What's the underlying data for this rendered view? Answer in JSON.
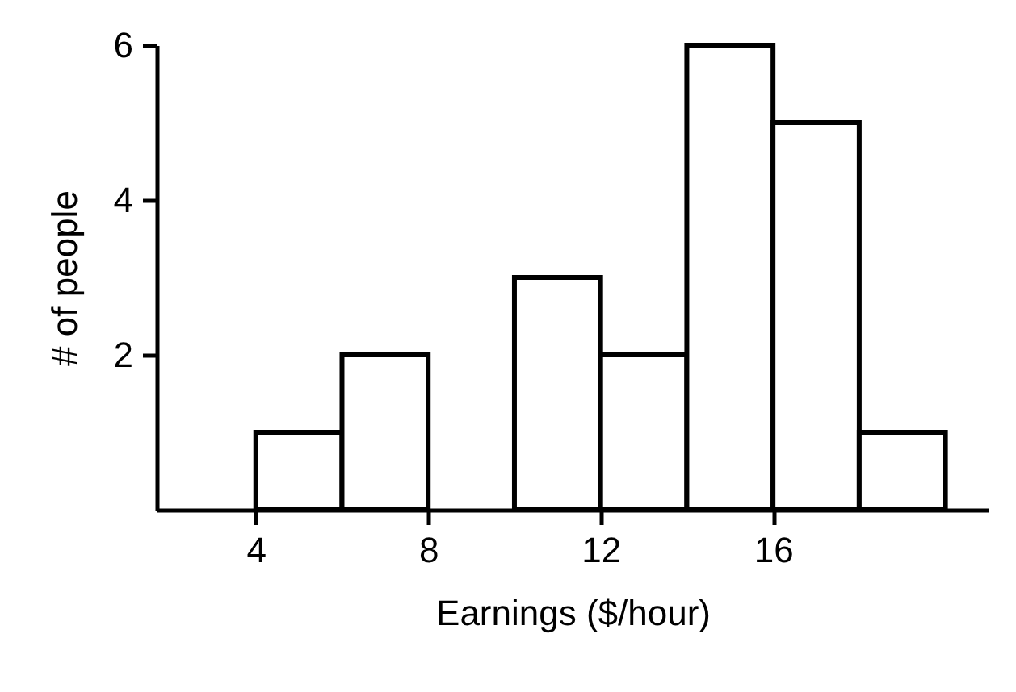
{
  "chart_data": {
    "type": "histogram",
    "xlabel": "Earnings ($/hour)",
    "ylabel": "# of people",
    "bins": [
      4,
      6,
      8,
      10,
      12,
      14,
      16,
      18,
      20
    ],
    "values": [
      1,
      2,
      0,
      3,
      2,
      6,
      5,
      1
    ],
    "color": "#ffffff",
    "xlim": [
      1.7,
      21
    ],
    "xticks": [
      4,
      8,
      12,
      16
    ],
    "ylim": [
      0,
      6
    ],
    "yticks": [
      2,
      4,
      6
    ],
    "grid": false
  }
}
